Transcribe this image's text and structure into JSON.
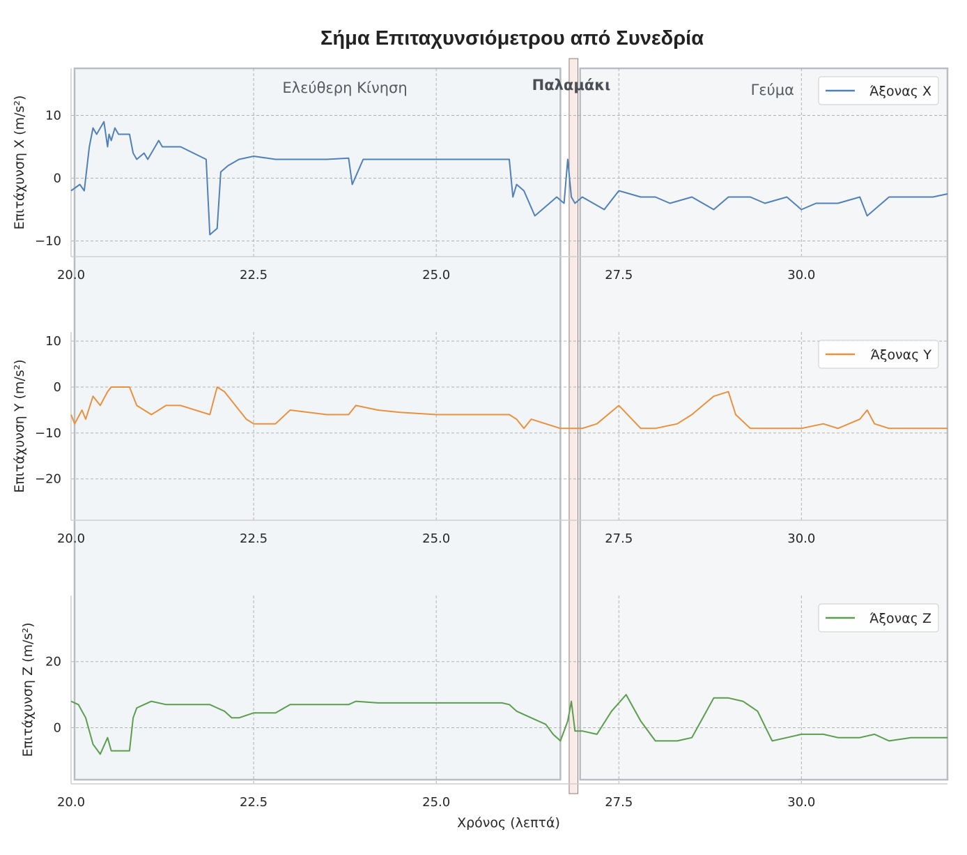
{
  "title": "Σήμα Επιταχυνσιόμετρου από Συνεδρία",
  "xlabel": "Χρόνος (λεπτά)",
  "chart_data": {
    "type": "line",
    "x_range": [
      20.0,
      32.0
    ],
    "x_ticks": [
      20.0,
      22.5,
      25.0,
      27.5,
      30.0
    ],
    "x_tick_labels": [
      "20.0",
      "22.5",
      "25.0",
      "27.5",
      "30.0"
    ],
    "grid": true,
    "legend_position": "top-right",
    "regions": [
      {
        "label": "Ελεύθερη Κίνηση",
        "start": 20.0,
        "end": 26.7,
        "bold": false,
        "fill": "#e8ecf3",
        "stroke": "#b9bcc2"
      },
      {
        "label": "Παλαμάκι",
        "start": 26.82,
        "end": 26.94,
        "bold": true,
        "fill": "#f7e6e2",
        "stroke": "#8a7f7d"
      },
      {
        "label": "Γεύμα",
        "start": 26.97,
        "end": 32.0,
        "bold": false,
        "fill": "#eceff1",
        "stroke": "#b9bcc2"
      }
    ],
    "panels": [
      {
        "ylabel": "Επιτάχυνση X (m/s²)",
        "ylim": [
          -12.5,
          17.5
        ],
        "yticks": [
          -10,
          0,
          10
        ],
        "ytick_labels": [
          "−10",
          "0",
          "10"
        ],
        "series": {
          "name": "Άξονας X",
          "color": "#4f81b8",
          "x": [
            20.0,
            20.12,
            20.18,
            20.2,
            20.25,
            20.3,
            20.35,
            20.45,
            20.5,
            20.52,
            20.55,
            20.6,
            20.65,
            20.8,
            20.85,
            20.9,
            21.0,
            21.05,
            21.2,
            21.25,
            21.3,
            21.5,
            21.85,
            21.9,
            22.0,
            22.05,
            22.15,
            22.3,
            22.5,
            22.8,
            23.0,
            23.5,
            23.8,
            23.85,
            24.0,
            24.5,
            25.0,
            25.5,
            26.0,
            26.05,
            26.1,
            26.2,
            26.35,
            26.45,
            26.55,
            26.65,
            26.75,
            26.8,
            26.85,
            26.9,
            27.0,
            27.15,
            27.3,
            27.5,
            27.8,
            28.0,
            28.2,
            28.5,
            28.8,
            29.0,
            29.3,
            29.5,
            29.8,
            30.0,
            30.2,
            30.5,
            30.8,
            30.9,
            31.0,
            31.2,
            31.5,
            31.8,
            32.0
          ],
          "y": [
            -2,
            -1,
            -2,
            0,
            5,
            8,
            7,
            9,
            5,
            7,
            6,
            8,
            7,
            7,
            4,
            3,
            4,
            3,
            6,
            5,
            5,
            5,
            3,
            -9,
            -8,
            1,
            2,
            3,
            3.5,
            3,
            3,
            3,
            3.2,
            -1,
            3,
            3,
            3,
            3,
            3,
            -3,
            -1,
            -2,
            -6,
            -5,
            -4,
            -3,
            -4,
            3,
            -3,
            -4,
            -3,
            -4,
            -5,
            -2,
            -3,
            -3,
            -4,
            -3,
            -5,
            -3,
            -3,
            -4,
            -3,
            -5,
            -4,
            -4,
            -3,
            -6,
            -5,
            -3,
            -3,
            -3,
            -2.5
          ]
        }
      },
      {
        "ylabel": "Επιτάχυνση Y (m/s²)",
        "ylim": [
          -29,
          12
        ],
        "yticks": [
          -20,
          -10,
          0,
          10
        ],
        "ytick_labels": [
          "−20",
          "−10",
          "0",
          "10"
        ],
        "series": {
          "name": "Άξονας Y",
          "color": "#e8913f",
          "x": [
            20.0,
            20.05,
            20.15,
            20.2,
            20.3,
            20.4,
            20.5,
            20.55,
            20.6,
            20.8,
            20.85,
            20.9,
            21.0,
            21.1,
            21.2,
            21.3,
            21.5,
            21.9,
            22.0,
            22.1,
            22.2,
            22.3,
            22.4,
            22.5,
            22.8,
            23.0,
            23.5,
            23.8,
            23.9,
            24.2,
            24.5,
            25.0,
            25.5,
            25.9,
            26.0,
            26.1,
            26.2,
            26.3,
            26.5,
            26.7,
            26.9,
            27.0,
            27.2,
            27.5,
            27.8,
            28.0,
            28.3,
            28.5,
            28.8,
            29.0,
            29.1,
            29.3,
            29.5,
            29.8,
            30.0,
            30.3,
            30.5,
            30.8,
            30.9,
            31.0,
            31.2,
            31.5,
            31.8,
            32.0
          ],
          "y": [
            -6,
            -8,
            -5,
            -7,
            -2,
            -4,
            -1,
            0,
            0,
            0,
            -2,
            -4,
            -5,
            -6,
            -5,
            -4,
            -4,
            -6,
            0,
            -1,
            -3,
            -5,
            -7,
            -8,
            -8,
            -5,
            -6,
            -6,
            -4,
            -5,
            -5.5,
            -6,
            -6,
            -6,
            -6,
            -7,
            -9,
            -7,
            -8,
            -9,
            -9,
            -9,
            -8,
            -4,
            -9,
            -9,
            -8,
            -6,
            -2,
            -1,
            -6,
            -9,
            -9,
            -9,
            -9,
            -8,
            -9,
            -7,
            -5,
            -8,
            -9,
            -9,
            -9,
            -9
          ]
        }
      },
      {
        "ylabel": "Επιτάχυνση Z (m/s²)",
        "ylim": [
          -17,
          40
        ],
        "yticks": [
          0,
          20
        ],
        "ytick_labels": [
          "0",
          "20"
        ],
        "series": {
          "name": "Άξονας Z",
          "color": "#5a9e4d",
          "x": [
            20.0,
            20.1,
            20.2,
            20.3,
            20.4,
            20.5,
            20.55,
            20.8,
            20.85,
            20.9,
            21.0,
            21.1,
            21.3,
            21.5,
            21.9,
            22.0,
            22.1,
            22.2,
            22.3,
            22.5,
            22.8,
            23.0,
            23.5,
            23.8,
            23.9,
            24.2,
            24.5,
            25.0,
            25.5,
            25.9,
            26.0,
            26.1,
            26.3,
            26.5,
            26.6,
            26.7,
            26.8,
            26.85,
            26.9,
            27.0,
            27.2,
            27.4,
            27.6,
            27.8,
            28.0,
            28.3,
            28.5,
            28.8,
            29.0,
            29.2,
            29.4,
            29.6,
            29.8,
            30.0,
            30.3,
            30.5,
            30.8,
            31.0,
            31.2,
            31.5,
            31.8,
            32.0
          ],
          "y": [
            8,
            7,
            3,
            -5,
            -8,
            -3,
            -7,
            -7,
            3,
            6,
            7,
            8,
            7,
            7,
            7,
            6,
            5,
            3,
            3,
            4.5,
            4.5,
            7,
            7,
            7,
            8,
            7.5,
            7.5,
            7.5,
            7.5,
            7.5,
            7,
            5,
            3,
            1,
            -2,
            -4,
            2,
            8,
            -1,
            -1,
            -2,
            5,
            10,
            2,
            -4,
            -4,
            -3,
            9,
            9,
            8,
            5,
            -4,
            -3,
            -2,
            -2,
            -3,
            -3,
            -2,
            -4,
            -3,
            -3,
            -3
          ]
        }
      }
    ]
  }
}
